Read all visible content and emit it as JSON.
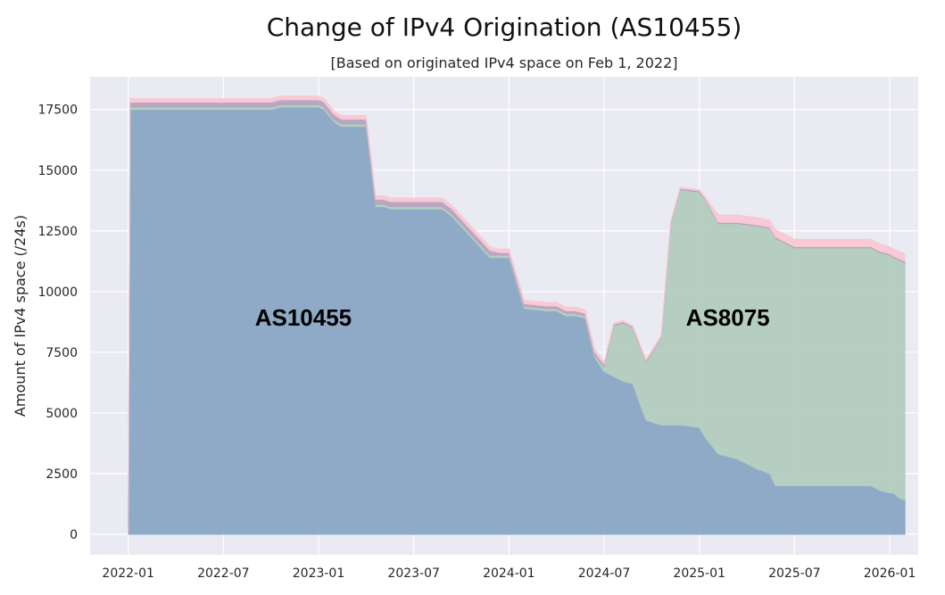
{
  "chart_data": {
    "type": "area",
    "title": "Change of IPv4 Origination (AS10455)",
    "subtitle": "[Based on originated IPv4 space on Feb 1, 2022]",
    "xlabel": "",
    "ylabel": "Amount of IPv4 space (/24s)",
    "x_ticks": [
      "2022-01",
      "2022-07",
      "2023-01",
      "2023-07",
      "2024-01",
      "2024-07",
      "2025-01",
      "2025-07",
      "2026-01"
    ],
    "y_ticks": [
      0,
      2500,
      5000,
      7500,
      10000,
      12500,
      15000,
      17500
    ],
    "ylim": [
      -850,
      18850
    ],
    "grid": true,
    "background": "#eaeaf2",
    "annotations": [
      {
        "text": "AS10455",
        "x": 2022.92,
        "y": 8600
      },
      {
        "text": "AS8075",
        "x": 2025.15,
        "y": 8600
      }
    ],
    "series": [
      {
        "color": "#89a6c4",
        "x": [
          2022.0,
          2022.01,
          2022.08,
          2022.75,
          2022.8,
          2022.97,
          2023.0,
          2023.03,
          2023.08,
          2023.12,
          2023.17,
          2023.25,
          2023.3,
          2023.34,
          2023.38,
          2023.5,
          2023.55,
          2023.6,
          2023.65,
          2023.7,
          2023.9,
          2023.95,
          2024.0,
          2024.08,
          2024.2,
          2024.25,
          2024.3,
          2024.35,
          2024.4,
          2024.45,
          2024.5,
          2024.55,
          2024.6,
          2024.65,
          2024.72,
          2024.8,
          2024.85,
          2024.9,
          2025.0,
          2025.03,
          2025.1,
          2025.2,
          2025.3,
          2025.37,
          2025.4,
          2025.5,
          2025.6,
          2025.7,
          2025.8,
          2025.9,
          2025.95,
          2026.0,
          2026.02,
          2026.05,
          2026.08
        ],
        "values": [
          0,
          17500,
          17500,
          17500,
          17600,
          17600,
          17600,
          17500,
          17000,
          16800,
          16800,
          16800,
          13500,
          13500,
          13400,
          13400,
          13400,
          13400,
          13400,
          13100,
          11400,
          11400,
          11400,
          9300,
          9200,
          9200,
          9000,
          9000,
          8900,
          7300,
          6700,
          6500,
          6300,
          6200,
          4700,
          4500,
          4500,
          4500,
          4400,
          4000,
          3300,
          3100,
          2700,
          2500,
          2000,
          2000,
          2000,
          2000,
          2000,
          2000,
          1800,
          1700,
          1700,
          1500,
          1400
        ]
      },
      {
        "color": "#b3ccbf",
        "x": [
          2022.0,
          2022.01,
          2022.08,
          2022.75,
          2022.8,
          2022.97,
          2023.0,
          2023.03,
          2023.08,
          2023.12,
          2023.17,
          2023.25,
          2023.3,
          2023.34,
          2023.38,
          2023.5,
          2023.55,
          2023.6,
          2023.65,
          2023.7,
          2023.9,
          2023.95,
          2024.0,
          2024.08,
          2024.2,
          2024.25,
          2024.3,
          2024.35,
          2024.4,
          2024.45,
          2024.5,
          2024.55,
          2024.6,
          2024.65,
          2024.72,
          2024.8,
          2024.85,
          2024.9,
          2025.0,
          2025.03,
          2025.1,
          2025.2,
          2025.3,
          2025.37,
          2025.4,
          2025.5,
          2025.6,
          2025.7,
          2025.8,
          2025.9,
          2025.95,
          2026.0,
          2026.02,
          2026.05,
          2026.08
        ],
        "values": [
          0,
          100,
          100,
          100,
          100,
          100,
          100,
          100,
          100,
          100,
          100,
          100,
          100,
          100,
          100,
          100,
          100,
          100,
          100,
          100,
          100,
          100,
          100,
          100,
          100,
          100,
          100,
          100,
          100,
          100,
          200,
          2100,
          2400,
          2300,
          2400,
          3600,
          8300,
          9700,
          9700,
          9800,
          9500,
          9700,
          10000,
          10100,
          10200,
          9800,
          9800,
          9800,
          9800,
          9800,
          9800,
          9800,
          9700,
          9800,
          9800
        ]
      },
      {
        "color": "#b4a3bd",
        "x": [
          2022.0,
          2022.01,
          2022.08,
          2022.75,
          2022.8,
          2022.97,
          2023.0,
          2023.03,
          2023.08,
          2023.12,
          2023.17,
          2023.25,
          2023.3,
          2023.34,
          2023.38,
          2023.5,
          2023.55,
          2023.6,
          2023.65,
          2023.7,
          2023.9,
          2023.95,
          2024.0,
          2024.08,
          2024.2,
          2024.25,
          2024.3,
          2024.35,
          2024.4,
          2024.45,
          2024.5,
          2024.55,
          2024.6,
          2024.65,
          2024.72,
          2024.8,
          2024.85,
          2024.9,
          2025.0,
          2025.03,
          2025.1,
          2025.2,
          2025.3,
          2025.37,
          2025.4,
          2025.5,
          2025.6,
          2025.7,
          2025.8,
          2025.9,
          2025.95,
          2026.0,
          2026.02,
          2026.05,
          2026.08
        ],
        "values": [
          0,
          200,
          200,
          200,
          200,
          200,
          200,
          200,
          200,
          200,
          200,
          200,
          200,
          200,
          200,
          200,
          200,
          200,
          200,
          200,
          200,
          100,
          100,
          100,
          100,
          100,
          100,
          100,
          100,
          100,
          100,
          50,
          50,
          50,
          50,
          50,
          50,
          50,
          50,
          50,
          50,
          50,
          50,
          50,
          50,
          50,
          50,
          50,
          50,
          50,
          50,
          50,
          50,
          50,
          50
        ]
      },
      {
        "color": "#f8c8d4",
        "x": [
          2022.0,
          2022.01,
          2022.08,
          2022.75,
          2022.8,
          2022.97,
          2023.0,
          2023.03,
          2023.08,
          2023.12,
          2023.17,
          2023.25,
          2023.3,
          2023.34,
          2023.38,
          2023.5,
          2023.55,
          2023.6,
          2023.65,
          2023.7,
          2023.9,
          2023.95,
          2024.0,
          2024.08,
          2024.2,
          2024.25,
          2024.3,
          2024.35,
          2024.4,
          2024.45,
          2024.5,
          2024.55,
          2024.6,
          2024.65,
          2024.72,
          2024.8,
          2024.85,
          2024.9,
          2025.0,
          2025.03,
          2025.1,
          2025.2,
          2025.3,
          2025.37,
          2025.4,
          2025.5,
          2025.6,
          2025.7,
          2025.8,
          2025.9,
          2025.95,
          2026.0,
          2026.02,
          2026.05,
          2026.08
        ],
        "values": [
          0,
          150,
          150,
          150,
          150,
          150,
          150,
          150,
          150,
          150,
          150,
          150,
          150,
          150,
          150,
          150,
          150,
          150,
          150,
          150,
          150,
          150,
          150,
          150,
          150,
          150,
          150,
          150,
          150,
          150,
          100,
          50,
          50,
          50,
          50,
          50,
          50,
          50,
          50,
          50,
          300,
          300,
          300,
          300,
          300,
          300,
          300,
          300,
          300,
          300,
          300,
          300,
          300,
          300,
          300
        ]
      }
    ]
  }
}
